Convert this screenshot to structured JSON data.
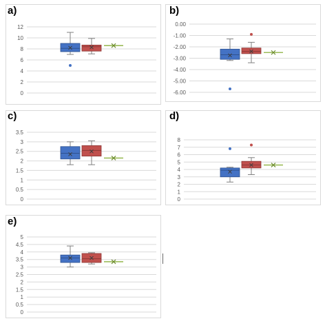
{
  "colors": {
    "blue_fill": "#4472c4",
    "blue_stroke": "#2f528f",
    "red_fill": "#c0504d",
    "red_stroke": "#8c3836",
    "green": "#9bbb59",
    "grid": "#d9d9d9",
    "axis_text": "#595959",
    "whisker": "#808080"
  },
  "chart_data": [
    {
      "type": "box",
      "panel_label": "a)",
      "yticks": [
        "0",
        "2",
        "4",
        "6",
        "8",
        "10",
        "12"
      ],
      "ylim": [
        0,
        12
      ],
      "grid": true,
      "series": [
        {
          "color": "blue",
          "min": 7.0,
          "q1": 7.5,
          "median": 8.1,
          "q3": 9.0,
          "max": 11.0,
          "mean": 8.2,
          "outliers": [
            5.0
          ]
        },
        {
          "color": "red",
          "min": 7.1,
          "q1": 7.6,
          "median": 8.4,
          "q3": 8.7,
          "max": 9.9,
          "mean": 8.3,
          "outliers": []
        },
        {
          "color": "green",
          "min": 8.6,
          "q1": 8.6,
          "median": 8.6,
          "q3": 8.6,
          "max": 8.6,
          "mean": 8.6,
          "outliers": []
        }
      ]
    },
    {
      "type": "box",
      "panel_label": "b)",
      "yticks": [
        "-6.00",
        "-5.00",
        "-4.00",
        "-3.00",
        "-2.00",
        "-1.00",
        "0.00"
      ],
      "ylim": [
        -6,
        0
      ],
      "grid": true,
      "series": [
        {
          "color": "blue",
          "min": -3.2,
          "q1": -3.1,
          "median": -2.7,
          "q3": -2.2,
          "max": -1.3,
          "mean": -2.75,
          "outliers": [
            -5.7
          ]
        },
        {
          "color": "red",
          "min": -3.4,
          "q1": -2.6,
          "median": -2.4,
          "q3": -2.1,
          "max": -1.6,
          "mean": -2.4,
          "outliers": [
            -0.9
          ]
        },
        {
          "color": "green",
          "min": -2.5,
          "q1": -2.5,
          "median": -2.5,
          "q3": -2.5,
          "max": -2.5,
          "mean": -2.5,
          "outliers": []
        }
      ]
    },
    {
      "type": "box",
      "panel_label": "c)",
      "yticks": [
        "0",
        "0.5",
        "1",
        "1.5",
        "2",
        "2.5",
        "3",
        "3.5"
      ],
      "ylim": [
        0,
        3.5
      ],
      "grid": true,
      "series": [
        {
          "color": "blue",
          "min": 1.8,
          "q1": 2.1,
          "median": 2.4,
          "q3": 2.75,
          "max": 3.0,
          "mean": 2.35,
          "outliers": []
        },
        {
          "color": "red",
          "min": 1.8,
          "q1": 2.25,
          "median": 2.55,
          "q3": 2.8,
          "max": 3.05,
          "mean": 2.5,
          "outliers": []
        },
        {
          "color": "green",
          "min": 2.15,
          "q1": 2.15,
          "median": 2.15,
          "q3": 2.15,
          "max": 2.15,
          "mean": 2.15,
          "outliers": []
        }
      ]
    },
    {
      "type": "box",
      "panel_label": "d)",
      "yticks": [
        "0",
        "1",
        "2",
        "3",
        "4",
        "5",
        "6",
        "7",
        "8"
      ],
      "ylim": [
        0,
        8
      ],
      "grid": true,
      "series": [
        {
          "color": "blue",
          "min": 2.3,
          "q1": 3.0,
          "median": 3.9,
          "q3": 4.2,
          "max": 4.3,
          "mean": 3.7,
          "outliers": [
            6.8
          ]
        },
        {
          "color": "red",
          "min": 3.3,
          "q1": 4.2,
          "median": 4.6,
          "q3": 5.1,
          "max": 5.6,
          "mean": 4.6,
          "outliers": [
            7.3
          ]
        },
        {
          "color": "green",
          "min": 4.6,
          "q1": 4.6,
          "median": 4.6,
          "q3": 4.6,
          "max": 4.6,
          "mean": 4.6,
          "outliers": []
        }
      ]
    },
    {
      "type": "box",
      "panel_label": "e)",
      "yticks": [
        "0",
        "0.5",
        "1",
        "1.5",
        "2",
        "2.5",
        "3",
        "3.5",
        "4",
        "4.5",
        "5"
      ],
      "ylim": [
        0,
        5
      ],
      "grid": true,
      "series": [
        {
          "color": "blue",
          "min": 3.0,
          "q1": 3.3,
          "median": 3.6,
          "q3": 3.8,
          "max": 4.4,
          "mean": 3.6,
          "outliers": []
        },
        {
          "color": "red",
          "min": 3.2,
          "q1": 3.3,
          "median": 3.55,
          "q3": 3.9,
          "max": 3.95,
          "mean": 3.6,
          "outliers": []
        },
        {
          "color": "green",
          "min": 3.35,
          "q1": 3.35,
          "median": 3.35,
          "q3": 3.35,
          "max": 3.35,
          "mean": 3.35,
          "outliers": []
        }
      ]
    }
  ]
}
